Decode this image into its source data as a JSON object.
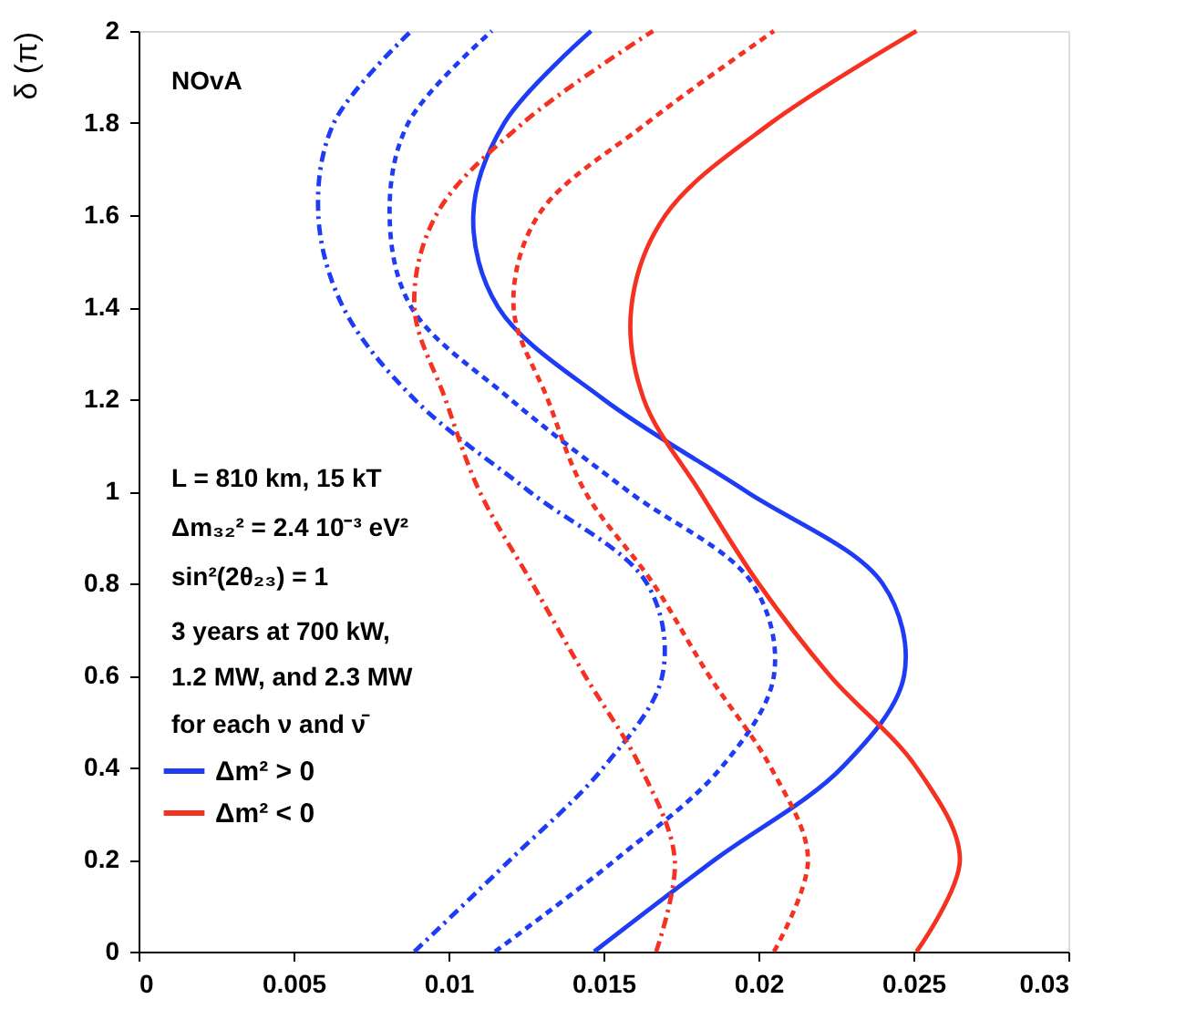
{
  "chart_data": {
    "type": "line",
    "ylabel": "δ (π)",
    "annotations": [
      "NOvA",
      "L = 810 km, 15 kT",
      "Δm₃₂² = 2.4 10⁻³ eV²",
      "sin²(2θ₂₃) = 1",
      "3 years at 700 kW,",
      "1.2 MW, and 2.3 MW",
      "for each ν and ν̄"
    ],
    "xlim": [
      0,
      0.03
    ],
    "xticks": [
      0,
      0.005,
      0.01,
      0.015,
      0.02,
      0.025,
      0.03
    ],
    "ylim": [
      0,
      2
    ],
    "yticks": [
      0,
      0.2,
      0.4,
      0.6,
      0.8,
      1,
      1.2,
      1.4,
      1.6,
      1.8,
      2
    ],
    "grid": false,
    "legend": "bottom left",
    "marker": "none",
    "series": [
      {
        "name": "Δm² > 0",
        "color": "#1f3cf5",
        "line_style": "solid",
        "x": [
          0.0147,
          0.0186,
          0.0227,
          0.0247,
          0.024,
          0.0196,
          0.015,
          0.0116,
          0.0108,
          0.0118,
          0.0146
        ],
        "values": [
          0,
          0.2,
          0.4,
          0.6,
          0.8,
          1,
          1.2,
          1.4,
          1.6,
          1.8,
          2
        ]
      },
      {
        "color": "#1f3cf5",
        "line_style": "dashed",
        "x": [
          0.0115,
          0.0154,
          0.0188,
          0.0205,
          0.0198,
          0.0158,
          0.012,
          0.0088,
          0.0081,
          0.0087,
          0.0114
        ],
        "values": [
          0,
          0.2,
          0.4,
          0.6,
          0.8,
          1,
          1.2,
          1.4,
          1.6,
          1.8,
          2
        ]
      },
      {
        "color": "#1f3cf5",
        "line_style": "dotted",
        "x": [
          0.0089,
          0.012,
          0.015,
          0.0169,
          0.0164,
          0.0126,
          0.0089,
          0.0066,
          0.0058,
          0.0063,
          0.0088
        ],
        "values": [
          0,
          0.2,
          0.4,
          0.6,
          0.8,
          1,
          1.2,
          1.4,
          1.6,
          1.8,
          2
        ]
      },
      {
        "name": "Δm² < 0",
        "color": "#f53222",
        "line_style": "solid",
        "x": [
          0.0251,
          0.0265,
          0.0251,
          0.0223,
          0.02,
          0.0181,
          0.0163,
          0.0159,
          0.017,
          0.0204,
          0.0251
        ],
        "values": [
          0,
          0.2,
          0.4,
          0.6,
          0.8,
          1,
          1.2,
          1.4,
          1.6,
          1.8,
          2
        ]
      },
      {
        "color": "#f53222",
        "line_style": "dashed",
        "x": [
          0.0205,
          0.0216,
          0.0204,
          0.0184,
          0.0166,
          0.0144,
          0.0132,
          0.0121,
          0.0129,
          0.0164,
          0.0205
        ],
        "values": [
          0,
          0.2,
          0.4,
          0.6,
          0.8,
          1,
          1.2,
          1.4,
          1.6,
          1.8,
          2
        ]
      },
      {
        "color": "#f53222",
        "line_style": "dotted",
        "x": [
          0.0167,
          0.0173,
          0.0162,
          0.0144,
          0.0127,
          0.011,
          0.0099,
          0.0089,
          0.0096,
          0.0124,
          0.0166
        ],
        "values": [
          0,
          0.2,
          0.4,
          0.6,
          0.8,
          1,
          1.2,
          1.4,
          1.6,
          1.8,
          2
        ]
      }
    ]
  }
}
